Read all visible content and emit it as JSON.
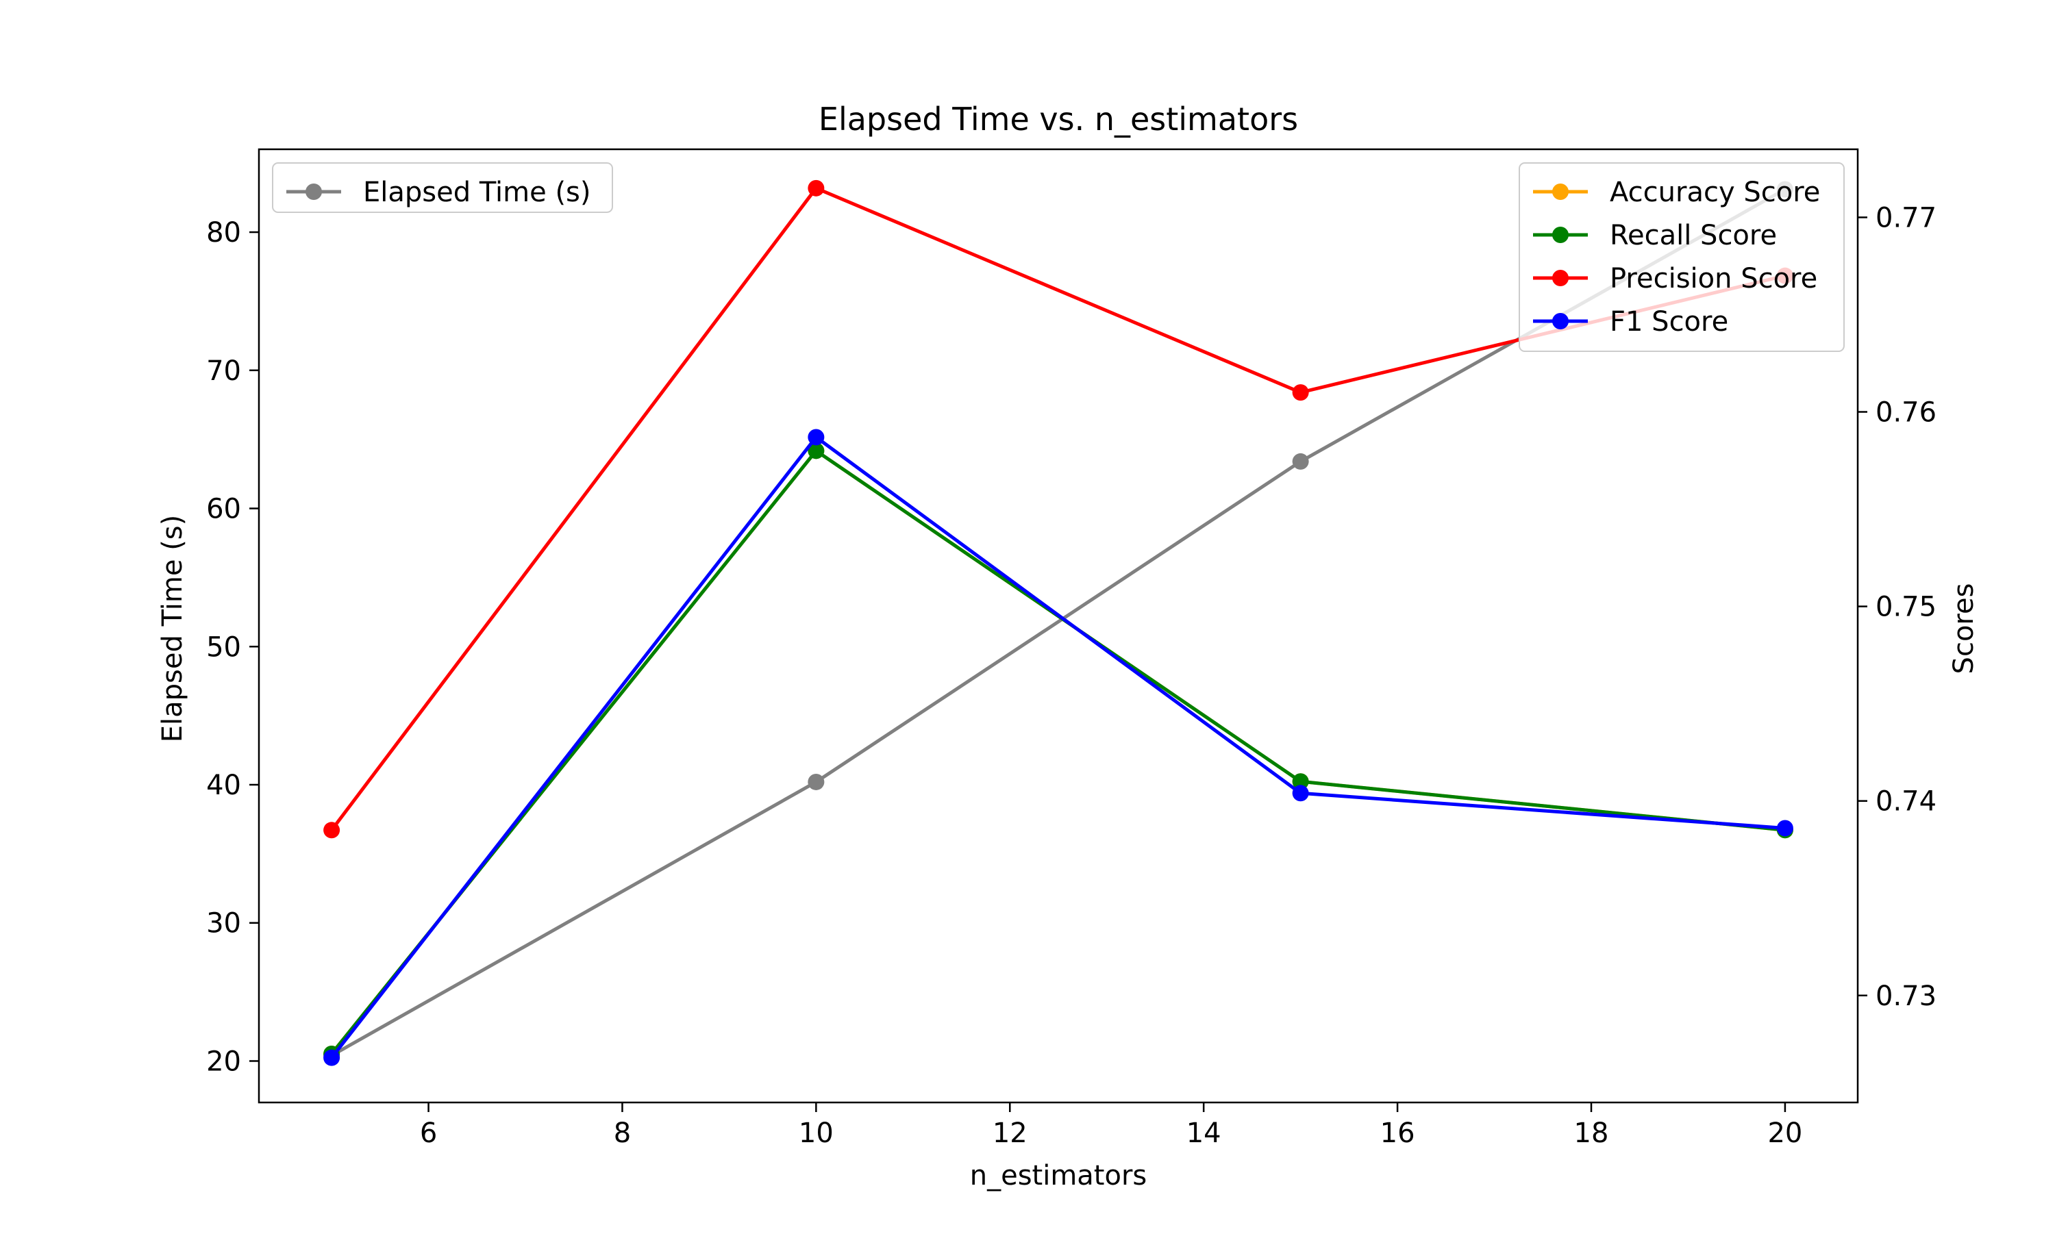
{
  "chart_data": {
    "type": "line",
    "title": "Elapsed Time vs. n_estimators",
    "xlabel": "n_estimators",
    "ylabel_left": "Elapsed Time (s)",
    "ylabel_right": "Scores",
    "xlim": [
      4.25,
      20.75
    ],
    "ylim_left": [
      17,
      86
    ],
    "ylim_right": [
      0.7245,
      0.7735
    ],
    "x_ticks": [
      6,
      8,
      10,
      12,
      14,
      16,
      18,
      20
    ],
    "y_left_ticks": [
      20,
      30,
      40,
      50,
      60,
      70,
      80
    ],
    "y_right_ticks": [
      0.73,
      0.74,
      0.75,
      0.76,
      0.77
    ],
    "grid": false,
    "x": [
      5,
      10,
      15,
      20
    ],
    "left_series": [
      {
        "name": "Elapsed Time (s)",
        "color": "#808080",
        "values": [
          20.4,
          40.2,
          63.4,
          83.1
        ]
      }
    ],
    "right_series": [
      {
        "name": "Accuracy Score",
        "color": "#ffa500",
        "values": [
          0.727,
          0.758,
          0.741,
          0.7385
        ]
      },
      {
        "name": "Recall Score",
        "color": "#008000",
        "values": [
          0.727,
          0.758,
          0.741,
          0.7385
        ]
      },
      {
        "name": "Precision Score",
        "color": "#ff0000",
        "values": [
          0.7385,
          0.7715,
          0.761,
          0.767
        ]
      },
      {
        "name": "F1 Score",
        "color": "#0000ff",
        "values": [
          0.7268,
          0.7587,
          0.7404,
          0.7386
        ]
      }
    ],
    "legend_left": {
      "placement": "top-left",
      "entries": [
        "Elapsed Time (s)"
      ]
    },
    "legend_right": {
      "placement": "top-right",
      "entries": [
        "Accuracy Score",
        "Recall Score",
        "Precision Score",
        "F1 Score"
      ]
    }
  }
}
